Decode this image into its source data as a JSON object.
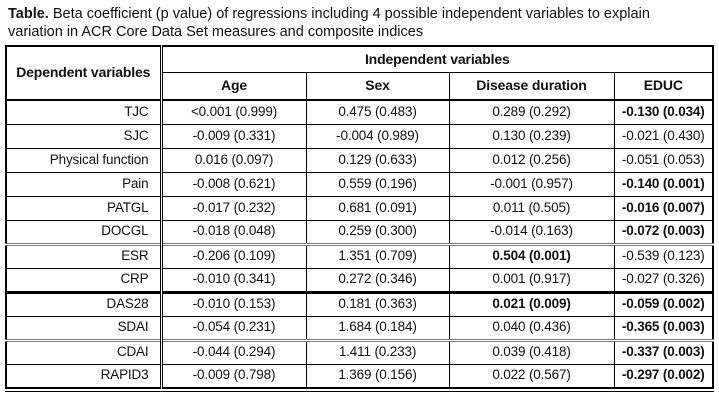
{
  "caption": {
    "label": "Table.",
    "text": "Beta coefficient (p value) of regressions including 4 possible independent variables to explain variation in ACR Core Data Set measures and composite indices"
  },
  "table": {
    "dependent_header": "Dependent variables",
    "independent_header": "Independent variables",
    "columns": [
      "Age",
      "Sex",
      "Disease duration",
      "EDUC"
    ],
    "rows": [
      {
        "label": "TJC",
        "values": [
          "<0.001 (0.999)",
          "0.475 (0.483)",
          "0.289 (0.292)",
          "-0.130 (0.034)"
        ],
        "bold": [
          false,
          false,
          false,
          true
        ]
      },
      {
        "label": "SJC",
        "values": [
          "-0.009 (0.331)",
          "-0.004 (0.989)",
          "0.130 (0.239)",
          "-0.021 (0.430)"
        ],
        "bold": [
          false,
          false,
          false,
          false
        ]
      },
      {
        "label": "Physical function",
        "values": [
          "0.016 (0.097)",
          "0.129 (0.633)",
          "0.012 (0.256)",
          "-0.051 (0.053)"
        ],
        "bold": [
          false,
          false,
          false,
          false
        ]
      },
      {
        "label": "Pain",
        "values": [
          "-0.008 (0.621)",
          "0.559 (0.196)",
          "-0.001 (0.957)",
          "-0.140 (0.001)"
        ],
        "bold": [
          false,
          false,
          false,
          true
        ]
      },
      {
        "label": "PATGL",
        "values": [
          "-0.017 (0.232)",
          "0.681 (0.091)",
          "0.011 (0.505)",
          "-0.016 (0.007)"
        ],
        "bold": [
          false,
          false,
          false,
          true
        ]
      },
      {
        "label": "DOCGL",
        "values": [
          "-0.018 (0.048)",
          "0.259 (0.300)",
          "-0.014 (0.163)",
          "-0.072 (0.003)"
        ],
        "bold": [
          false,
          false,
          false,
          true
        ]
      },
      {
        "label": "ESR",
        "values": [
          "-0.206 (0.109)",
          "1.351 (0.709)",
          "0.504 (0.001)",
          "-0.539 (0.123)"
        ],
        "bold": [
          false,
          false,
          true,
          false
        ]
      },
      {
        "label": "CRP",
        "values": [
          "-0.010 (0.341)",
          "0.272 (0.346)",
          "0.001 (0.917)",
          "-0.027 (0.326)"
        ],
        "bold": [
          false,
          false,
          false,
          false
        ]
      },
      {
        "label": "DAS28",
        "values": [
          "-0.010 (0.153)",
          "0.181 (0.363)",
          "0.021 (0.009)",
          "-0.059 (0.002)"
        ],
        "bold": [
          false,
          false,
          true,
          true
        ]
      },
      {
        "label": "SDAI",
        "values": [
          "-0.054 (0.231)",
          "1.684 (0.184)",
          "0.040 (0.436)",
          "-0.365 (0.003)"
        ],
        "bold": [
          false,
          false,
          false,
          true
        ]
      },
      {
        "label": "CDAI",
        "values": [
          "-0.044 (0.294)",
          "1.411 (0.233)",
          "0.039 (0.418)",
          "-0.337 (0.003)"
        ],
        "bold": [
          false,
          false,
          false,
          true
        ]
      },
      {
        "label": "RAPID3",
        "values": [
          "-0.009 (0.798)",
          "1.369 (0.156)",
          "0.022 (0.567)",
          "-0.297 (0.002)"
        ],
        "bold": [
          false,
          false,
          false,
          true
        ]
      }
    ],
    "separators": {
      "double_before": [
        "ESR",
        "CDAI"
      ],
      "strong_before": [
        "DAS28"
      ]
    },
    "colors": {
      "text": "#111111",
      "border": "#000000",
      "separator_gray": "#7a7a7a",
      "background": "#ffffff"
    }
  }
}
